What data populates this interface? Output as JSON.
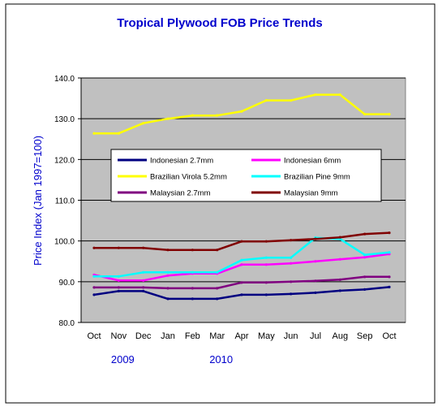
{
  "chart_data": {
    "type": "line",
    "title": "Tropical Plywood FOB Price Trends",
    "xlabel": "",
    "ylabel": "Price Index (Jan 1997=100)",
    "ylim": [
      80.0,
      140.0
    ],
    "yticks": [
      "80.0",
      "90.0",
      "100.0",
      "110.0",
      "120.0",
      "130.0",
      "140.0"
    ],
    "categories": [
      "Oct",
      "Nov",
      "Dec",
      "Jan",
      "Feb",
      "Mar",
      "Apr",
      "May",
      "Jun",
      "Jul",
      "Aug",
      "Sep",
      "Oct"
    ],
    "year_labels": [
      {
        "text": "2009",
        "category_index": 1
      },
      {
        "text": "2010",
        "category_index": 5
      }
    ],
    "grid": true,
    "legend": "inside-center",
    "plot_background": "#c0c0c0",
    "series": [
      {
        "name": "Indonesian 2.7mm",
        "color": "#000080",
        "values": [
          86.8,
          87.7,
          87.7,
          85.8,
          85.8,
          85.8,
          86.8,
          86.8,
          87.0,
          87.3,
          87.8,
          88.1,
          88.7
        ]
      },
      {
        "name": "Indonesian 6mm",
        "color": "#ff00ff",
        "values": [
          91.7,
          90.3,
          90.3,
          91.5,
          92.0,
          92.0,
          94.2,
          94.2,
          94.5,
          95.0,
          95.5,
          96.0,
          96.8
        ]
      },
      {
        "name": "Brazilian Virola 5.2mm",
        "color": "#ffff00",
        "values": [
          126.4,
          126.4,
          128.9,
          130.0,
          130.8,
          130.8,
          131.8,
          134.5,
          134.5,
          135.9,
          135.9,
          131.1,
          131.1
        ]
      },
      {
        "name": "Brazilian Pine 9mm",
        "color": "#00ffff",
        "values": [
          91.3,
          91.3,
          92.3,
          92.3,
          92.3,
          92.3,
          95.3,
          95.9,
          95.9,
          100.8,
          100.5,
          96.6,
          97.2
        ]
      },
      {
        "name": "Malaysian 2.7mm",
        "color": "#800080",
        "values": [
          88.6,
          88.6,
          88.6,
          88.4,
          88.4,
          88.4,
          89.8,
          89.8,
          90.0,
          90.2,
          90.5,
          91.2,
          91.2
        ]
      },
      {
        "name": "Malaysian 9mm",
        "color": "#800000",
        "values": [
          98.3,
          98.3,
          98.3,
          97.8,
          97.8,
          97.8,
          99.9,
          99.9,
          100.2,
          100.5,
          100.9,
          101.7,
          102.0
        ]
      }
    ]
  }
}
